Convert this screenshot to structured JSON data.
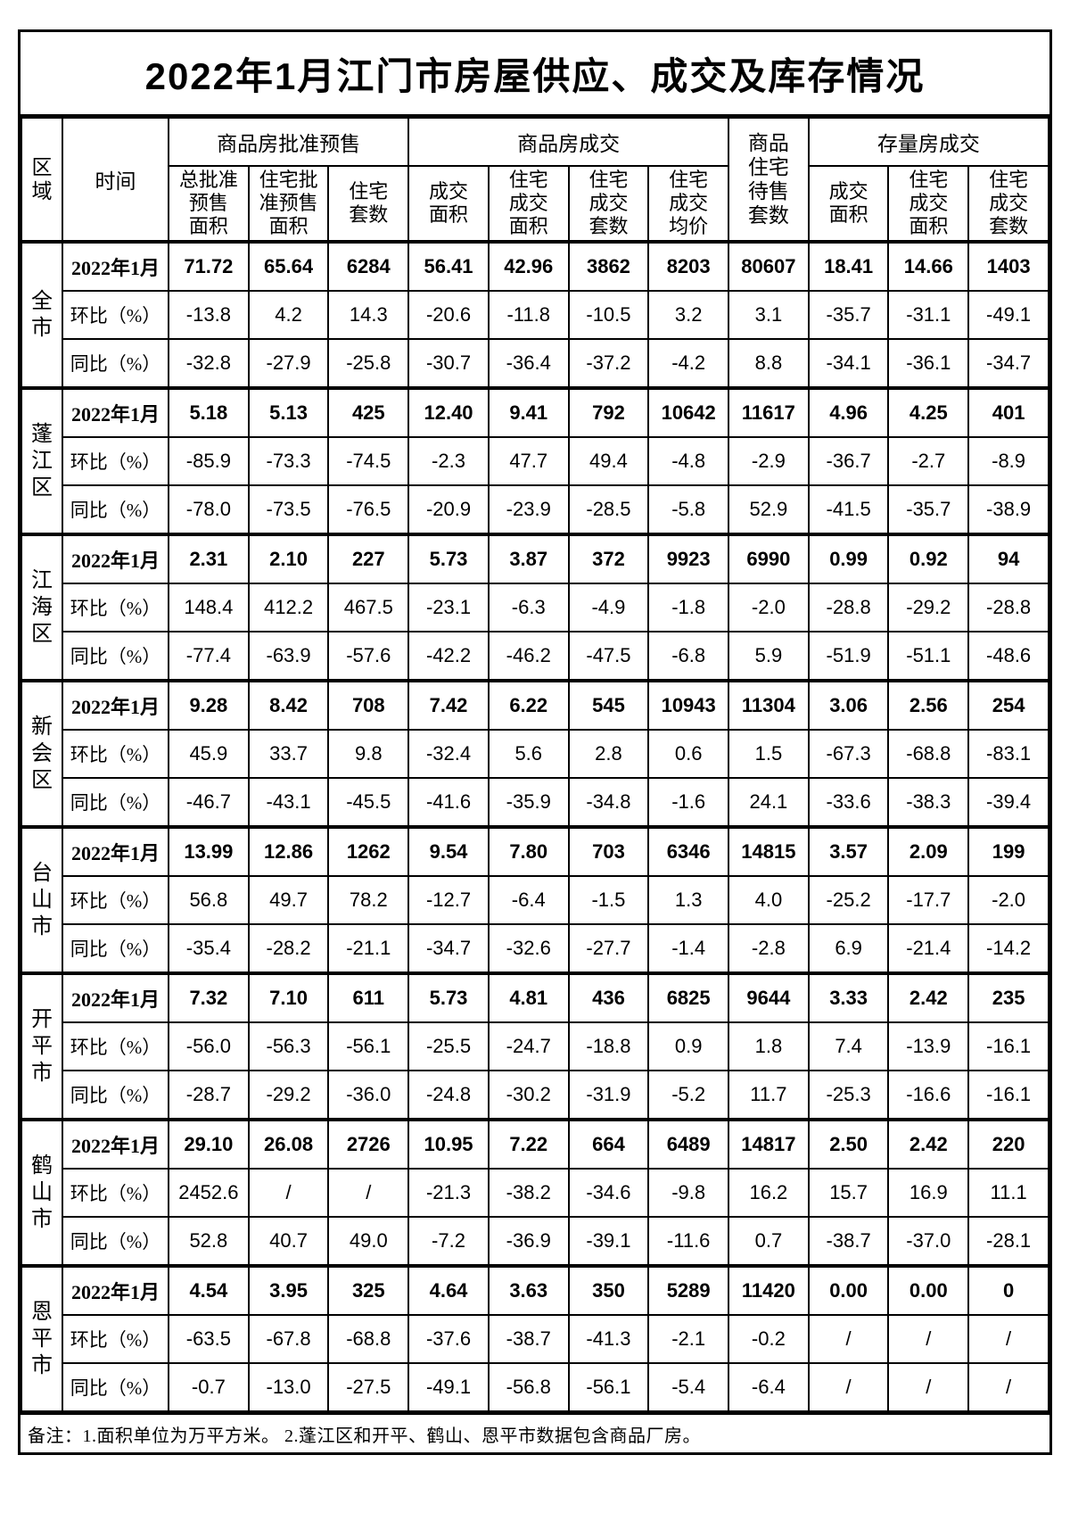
{
  "title": "2022年1月江门市房屋供应、成交及库存情况",
  "header": {
    "region": "区域",
    "time": "时间",
    "groups": {
      "presale": "商品房批准预售",
      "transaction": "商品房成交",
      "forsale": "商品\n住宅\n待售\n套数",
      "stock": "存量房成交"
    },
    "subcolumns": [
      "总批准\n预售\n面积",
      "住宅批\n准预售\n面积",
      "住宅\n套数",
      "成交\n面积",
      "住宅\n成交\n面积",
      "住宅\n成交\n套数",
      "住宅\n成交\n均价",
      "成交\n面积",
      "住宅\n成交\n面积",
      "住宅\n成交\n套数"
    ]
  },
  "row_labels": [
    "2022年1月",
    "环比（%）",
    "同比（%）"
  ],
  "regions": [
    {
      "name": "全市",
      "rows": [
        [
          "71.72",
          "65.64",
          "6284",
          "56.41",
          "42.96",
          "3862",
          "8203",
          "80607",
          "18.41",
          "14.66",
          "1403"
        ],
        [
          "-13.8",
          "4.2",
          "14.3",
          "-20.6",
          "-11.8",
          "-10.5",
          "3.2",
          "3.1",
          "-35.7",
          "-31.1",
          "-49.1"
        ],
        [
          "-32.8",
          "-27.9",
          "-25.8",
          "-30.7",
          "-36.4",
          "-37.2",
          "-4.2",
          "8.8",
          "-34.1",
          "-36.1",
          "-34.7"
        ]
      ]
    },
    {
      "name": "蓬江区",
      "rows": [
        [
          "5.18",
          "5.13",
          "425",
          "12.40",
          "9.41",
          "792",
          "10642",
          "11617",
          "4.96",
          "4.25",
          "401"
        ],
        [
          "-85.9",
          "-73.3",
          "-74.5",
          "-2.3",
          "47.7",
          "49.4",
          "-4.8",
          "-2.9",
          "-36.7",
          "-2.7",
          "-8.9"
        ],
        [
          "-78.0",
          "-73.5",
          "-76.5",
          "-20.9",
          "-23.9",
          "-28.5",
          "-5.8",
          "52.9",
          "-41.5",
          "-35.7",
          "-38.9"
        ]
      ]
    },
    {
      "name": "江海区",
      "rows": [
        [
          "2.31",
          "2.10",
          "227",
          "5.73",
          "3.87",
          "372",
          "9923",
          "6990",
          "0.99",
          "0.92",
          "94"
        ],
        [
          "148.4",
          "412.2",
          "467.5",
          "-23.1",
          "-6.3",
          "-4.9",
          "-1.8",
          "-2.0",
          "-28.8",
          "-29.2",
          "-28.8"
        ],
        [
          "-77.4",
          "-63.9",
          "-57.6",
          "-42.2",
          "-46.2",
          "-47.5",
          "-6.8",
          "5.9",
          "-51.9",
          "-51.1",
          "-48.6"
        ]
      ]
    },
    {
      "name": "新会区",
      "rows": [
        [
          "9.28",
          "8.42",
          "708",
          "7.42",
          "6.22",
          "545",
          "10943",
          "11304",
          "3.06",
          "2.56",
          "254"
        ],
        [
          "45.9",
          "33.7",
          "9.8",
          "-32.4",
          "5.6",
          "2.8",
          "0.6",
          "1.5",
          "-67.3",
          "-68.8",
          "-83.1"
        ],
        [
          "-46.7",
          "-43.1",
          "-45.5",
          "-41.6",
          "-35.9",
          "-34.8",
          "-1.6",
          "24.1",
          "-33.6",
          "-38.3",
          "-39.4"
        ]
      ]
    },
    {
      "name": "台山市",
      "rows": [
        [
          "13.99",
          "12.86",
          "1262",
          "9.54",
          "7.80",
          "703",
          "6346",
          "14815",
          "3.57",
          "2.09",
          "199"
        ],
        [
          "56.8",
          "49.7",
          "78.2",
          "-12.7",
          "-6.4",
          "-1.5",
          "1.3",
          "4.0",
          "-25.2",
          "-17.7",
          "-2.0"
        ],
        [
          "-35.4",
          "-28.2",
          "-21.1",
          "-34.7",
          "-32.6",
          "-27.7",
          "-1.4",
          "-2.8",
          "6.9",
          "-21.4",
          "-14.2"
        ]
      ]
    },
    {
      "name": "开平市",
      "rows": [
        [
          "7.32",
          "7.10",
          "611",
          "5.73",
          "4.81",
          "436",
          "6825",
          "9644",
          "3.33",
          "2.42",
          "235"
        ],
        [
          "-56.0",
          "-56.3",
          "-56.1",
          "-25.5",
          "-24.7",
          "-18.8",
          "0.9",
          "1.8",
          "7.4",
          "-13.9",
          "-16.1"
        ],
        [
          "-28.7",
          "-29.2",
          "-36.0",
          "-24.8",
          "-30.2",
          "-31.9",
          "-5.2",
          "11.7",
          "-25.3",
          "-16.6",
          "-16.1"
        ]
      ]
    },
    {
      "name": "鹤山市",
      "rows": [
        [
          "29.10",
          "26.08",
          "2726",
          "10.95",
          "7.22",
          "664",
          "6489",
          "14817",
          "2.50",
          "2.42",
          "220"
        ],
        [
          "2452.6",
          "/",
          "/",
          "-21.3",
          "-38.2",
          "-34.6",
          "-9.8",
          "16.2",
          "15.7",
          "16.9",
          "11.1"
        ],
        [
          "52.8",
          "40.7",
          "49.0",
          "-7.2",
          "-36.9",
          "-39.1",
          "-11.6",
          "0.7",
          "-38.7",
          "-37.0",
          "-28.1"
        ]
      ]
    },
    {
      "name": "恩平市",
      "rows": [
        [
          "4.54",
          "3.95",
          "325",
          "4.64",
          "3.63",
          "350",
          "5289",
          "11420",
          "0.00",
          "0.00",
          "0"
        ],
        [
          "-63.5",
          "-67.8",
          "-68.8",
          "-37.6",
          "-38.7",
          "-41.3",
          "-2.1",
          "-0.2",
          "/",
          "/",
          "/"
        ],
        [
          "-0.7",
          "-13.0",
          "-27.5",
          "-49.1",
          "-56.8",
          "-56.1",
          "-5.4",
          "-6.4",
          "/",
          "/",
          "/"
        ]
      ]
    }
  ],
  "note": "备注：1.面积单位为万平方米。  2.蓬江区和开平、鹤山、恩平市数据包含商品厂房。"
}
